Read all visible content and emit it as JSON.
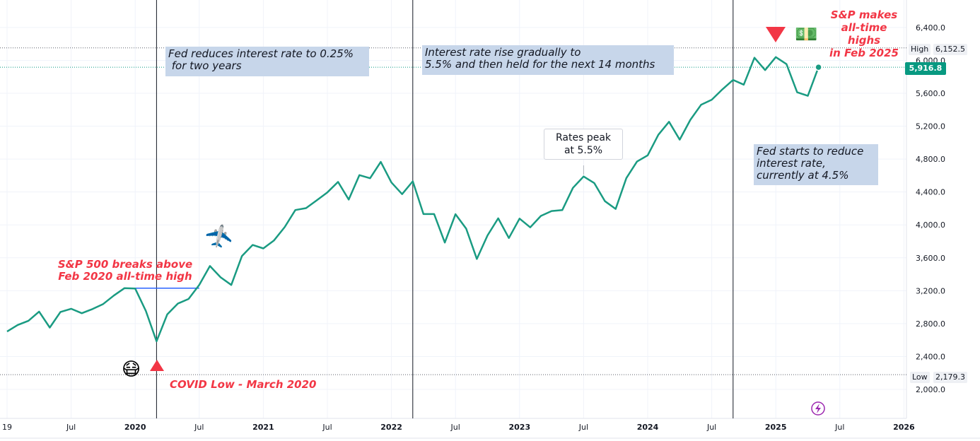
{
  "chart_data": {
    "type": "line",
    "title": "",
    "xlabel": "",
    "ylabel": "",
    "ylim": [
      1850,
      6650
    ],
    "xlim": [
      "2019-01",
      "2026-06"
    ],
    "grid": true,
    "line_color": "#1a9b82",
    "y_ticks": [
      "2,000.0",
      "2,400.0",
      "2,800.0",
      "3,200.0",
      "3,600.0",
      "4,000.0",
      "4,400.0",
      "4,800.0",
      "5,200.0",
      "5,600.0",
      "6,000.0",
      "6,400.0"
    ],
    "x_ticks": [
      {
        "label": "19",
        "date": "2019-01",
        "year": false
      },
      {
        "label": "Jul",
        "date": "2019-07",
        "year": false
      },
      {
        "label": "2020",
        "date": "2020-01",
        "year": true
      },
      {
        "label": "Jul",
        "date": "2020-07",
        "year": false
      },
      {
        "label": "2021",
        "date": "2021-01",
        "year": true
      },
      {
        "label": "Jul",
        "date": "2021-07",
        "year": false
      },
      {
        "label": "2022",
        "date": "2022-01",
        "year": true
      },
      {
        "label": "Jul",
        "date": "2022-07",
        "year": false
      },
      {
        "label": "2023",
        "date": "2023-01",
        "year": true
      },
      {
        "label": "Jul",
        "date": "2023-07",
        "year": false
      },
      {
        "label": "2024",
        "date": "2024-01",
        "year": true
      },
      {
        "label": "Jul",
        "date": "2024-07",
        "year": false
      },
      {
        "label": "2025",
        "date": "2025-01",
        "year": true
      },
      {
        "label": "Jul",
        "date": "2025-07",
        "year": false
      },
      {
        "label": "2026",
        "date": "2026-01",
        "year": true
      }
    ],
    "series": [
      {
        "x": [
          "2019-01",
          "2019-02",
          "2019-03",
          "2019-04",
          "2019-05",
          "2019-06",
          "2019-07",
          "2019-08",
          "2019-09",
          "2019-10",
          "2019-11",
          "2019-12",
          "2020-01",
          "2020-02",
          "2020-03",
          "2020-04",
          "2020-05",
          "2020-06",
          "2020-07",
          "2020-08",
          "2020-09",
          "2020-10",
          "2020-11",
          "2020-12",
          "2021-01",
          "2021-02",
          "2021-03",
          "2021-04",
          "2021-05",
          "2021-06",
          "2021-07",
          "2021-08",
          "2021-09",
          "2021-10",
          "2021-11",
          "2021-12",
          "2022-01",
          "2022-02",
          "2022-03",
          "2022-04",
          "2022-05",
          "2022-06",
          "2022-07",
          "2022-08",
          "2022-09",
          "2022-10",
          "2022-11",
          "2022-12",
          "2023-01",
          "2023-02",
          "2023-03",
          "2023-04",
          "2023-05",
          "2023-06",
          "2023-07",
          "2023-08",
          "2023-09",
          "2023-10",
          "2023-11",
          "2023-12",
          "2024-01",
          "2024-02",
          "2024-03",
          "2024-04",
          "2024-05",
          "2024-06",
          "2024-07",
          "2024-08",
          "2024-09",
          "2024-10",
          "2024-11",
          "2024-12",
          "2025-01",
          "2025-02",
          "2025-03",
          "2025-04",
          "2025-05"
        ],
        "values": [
          2704,
          2784,
          2834,
          2946,
          2752,
          2942,
          2980,
          2926,
          2977,
          3038,
          3141,
          3231,
          3226,
          2954,
          2585,
          2912,
          3044,
          3100,
          3271,
          3500,
          3363,
          3270,
          3622,
          3756,
          3714,
          3811,
          3973,
          4181,
          4204,
          4298,
          4395,
          4523,
          4308,
          4605,
          4567,
          4766,
          4516,
          4374,
          4530,
          4132,
          4132,
          3785,
          4130,
          3955,
          3586,
          3872,
          4080,
          3840,
          4077,
          3970,
          4109,
          4169,
          4180,
          4450,
          4589,
          4508,
          4288,
          4194,
          4568,
          4770,
          4846,
          5096,
          5254,
          5036,
          5278,
          5460,
          5522,
          5648,
          5762,
          5705,
          6032,
          5882,
          6040,
          5955,
          5612,
          5569,
          5916.8
        ]
      }
    ],
    "high": {
      "label": "High",
      "value": 6152.5,
      "text": "6,152.5"
    },
    "low": {
      "label": "Low",
      "value": 2179.3,
      "text": "2,179.3"
    },
    "last": {
      "value": 5916.8,
      "text": "5,916.8"
    },
    "vlines": [
      "2020-03",
      "2022-03",
      "2024-09"
    ],
    "ath_line": {
      "from": "2020-01",
      "to": "2020-07",
      "value": 3231
    }
  },
  "annotations": {
    "fed_reduce": "Fed reduces interest rate to 0.25%\n for two years",
    "rate_rise": "Interest rate rise gradually to\n5.5% and then held for the next 14 months",
    "rates_peak": "Rates peak\nat 5.5%",
    "fed_starts": "Fed starts to reduce\ninterest rate,\ncurrently at 4.5%",
    "sp_breaks": "S&P 500 breaks above\nFeb 2020 all-time high",
    "covid_low": "COVID Low - March 2020",
    "ath_2025": "S&P makes\nall-time\nhighs\nin Feb 2025"
  },
  "icons": {
    "mask": "face-with-medical-mask",
    "airplane": "airplane",
    "money": "banknote",
    "lightning": "lightning-bolt"
  },
  "colors": {
    "line": "#1a9b82",
    "red": "#f23645",
    "note_bg": "#c7d6ea",
    "ath_line": "#2962ff",
    "lightning": "#9c27b0"
  }
}
